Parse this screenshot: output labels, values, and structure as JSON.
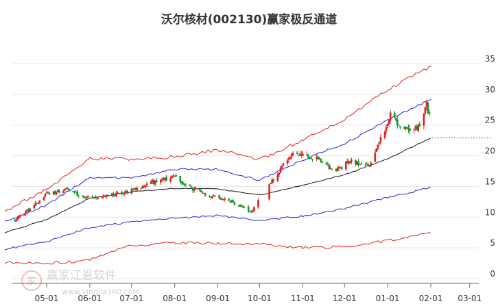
{
  "title": "沃尔核材(002130)赢家极反通道",
  "watermark": {
    "text": "赢家江恩软件",
    "url": "www.yingjia360.com",
    "badge": "家"
  },
  "chart_data": {
    "type": "candlestick",
    "title": "沃尔核材(002130)赢家极反通道",
    "ylim": [
      0,
      35
    ],
    "y_ticks": [
      0,
      5,
      10,
      15,
      20,
      25,
      30,
      35
    ],
    "x_ticks": [
      "05-01",
      "06-01",
      "07-01",
      "08-01",
      "09-01",
      "10-01",
      "11-01",
      "12-01",
      "01-01",
      "02-01",
      "03-01"
    ],
    "grid": {
      "horizontal": true,
      "vertical": false
    },
    "colors": {
      "up": "#e02020",
      "down": "#0a9a2a",
      "outer_band": "#e02020",
      "inner_band": "#2020dd",
      "mid_line": "#111111",
      "last_price_line": "#0a9a2a"
    },
    "last_price": 22.9,
    "price_anchors": [
      {
        "date": "04-08",
        "price": 9.5
      },
      {
        "date": "04-20",
        "price": 11.5
      },
      {
        "date": "05-01",
        "price": 13.8
      },
      {
        "date": "05-15",
        "price": 14.6
      },
      {
        "date": "06-01",
        "price": 13.0
      },
      {
        "date": "06-15",
        "price": 13.6
      },
      {
        "date": "07-01",
        "price": 14.3
      },
      {
        "date": "07-15",
        "price": 15.6
      },
      {
        "date": "08-01",
        "price": 16.6
      },
      {
        "date": "08-10",
        "price": 15.0
      },
      {
        "date": "08-25",
        "price": 13.6
      },
      {
        "date": "09-10",
        "price": 12.6
      },
      {
        "date": "09-25",
        "price": 10.8
      },
      {
        "date": "10-01",
        "price": 13.0
      },
      {
        "date": "10-10",
        "price": 15.8
      },
      {
        "date": "10-20",
        "price": 19.3
      },
      {
        "date": "10-28",
        "price": 20.6
      },
      {
        "date": "11-10",
        "price": 19.6
      },
      {
        "date": "11-25",
        "price": 17.5
      },
      {
        "date": "12-05",
        "price": 19.2
      },
      {
        "date": "12-20",
        "price": 18.5
      },
      {
        "date": "12-28",
        "price": 23.2
      },
      {
        "date": "01-03",
        "price": 27.0
      },
      {
        "date": "01-08",
        "price": 25.0
      },
      {
        "date": "01-15",
        "price": 24.2
      },
      {
        "date": "01-25",
        "price": 24.6
      },
      {
        "date": "01-29",
        "price": 28.6
      },
      {
        "date": "02-01",
        "price": 25.2
      },
      {
        "date": "02-02",
        "price": 22.9
      }
    ],
    "channel_lines": {
      "outer_upper": [
        {
          "date": "04-01",
          "value": 11.0
        },
        {
          "date": "05-01",
          "value": 14.5
        },
        {
          "date": "06-01",
          "value": 19.5
        },
        {
          "date": "07-01",
          "value": 19.5
        },
        {
          "date": "08-01",
          "value": 19.8
        },
        {
          "date": "09-01",
          "value": 21.0
        },
        {
          "date": "10-01",
          "value": 19.4
        },
        {
          "date": "11-01",
          "value": 22.5
        },
        {
          "date": "12-01",
          "value": 26.0
        },
        {
          "date": "01-01",
          "value": 30.8
        },
        {
          "date": "02-01",
          "value": 34.5
        }
      ],
      "inner_upper": [
        {
          "date": "04-01",
          "value": 9.2
        },
        {
          "date": "05-01",
          "value": 12.0
        },
        {
          "date": "06-01",
          "value": 16.5
        },
        {
          "date": "07-01",
          "value": 16.4
        },
        {
          "date": "08-01",
          "value": 17.8
        },
        {
          "date": "09-01",
          "value": 17.8
        },
        {
          "date": "10-01",
          "value": 16.0
        },
        {
          "date": "11-01",
          "value": 19.3
        },
        {
          "date": "12-01",
          "value": 22.0
        },
        {
          "date": "01-01",
          "value": 25.8
        },
        {
          "date": "02-01",
          "value": 29.2
        }
      ],
      "middle": [
        {
          "date": "04-01",
          "value": 7.5
        },
        {
          "date": "05-01",
          "value": 9.6
        },
        {
          "date": "06-01",
          "value": 13.1
        },
        {
          "date": "07-01",
          "value": 14.1
        },
        {
          "date": "08-01",
          "value": 14.7
        },
        {
          "date": "09-01",
          "value": 14.6
        },
        {
          "date": "10-01",
          "value": 13.6
        },
        {
          "date": "11-01",
          "value": 15.2
        },
        {
          "date": "12-01",
          "value": 16.9
        },
        {
          "date": "01-01",
          "value": 19.5
        },
        {
          "date": "02-01",
          "value": 22.9
        }
      ],
      "inner_lower": [
        {
          "date": "04-01",
          "value": 4.8
        },
        {
          "date": "05-01",
          "value": 6.0
        },
        {
          "date": "06-01",
          "value": 8.3
        },
        {
          "date": "07-01",
          "value": 9.2
        },
        {
          "date": "08-01",
          "value": 9.8
        },
        {
          "date": "09-01",
          "value": 10.3
        },
        {
          "date": "10-01",
          "value": 9.4
        },
        {
          "date": "11-01",
          "value": 10.2
        },
        {
          "date": "12-01",
          "value": 11.4
        },
        {
          "date": "01-01",
          "value": 13.2
        },
        {
          "date": "02-01",
          "value": 14.8
        }
      ],
      "outer_lower": [
        {
          "date": "04-01",
          "value": 2.6
        },
        {
          "date": "05-01",
          "value": 2.4
        },
        {
          "date": "06-01",
          "value": 3.0
        },
        {
          "date": "07-01",
          "value": 5.4
        },
        {
          "date": "08-01",
          "value": 5.8
        },
        {
          "date": "09-01",
          "value": 5.8
        },
        {
          "date": "10-01",
          "value": 5.6
        },
        {
          "date": "11-01",
          "value": 5.0
        },
        {
          "date": "12-01",
          "value": 5.2
        },
        {
          "date": "01-01",
          "value": 6.2
        },
        {
          "date": "02-01",
          "value": 7.4
        }
      ]
    }
  }
}
